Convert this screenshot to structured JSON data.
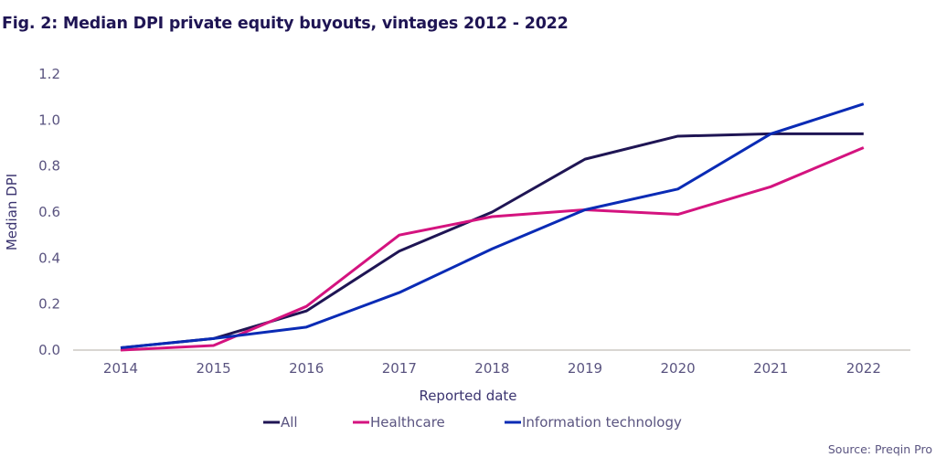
{
  "chart_data": {
    "type": "line",
    "title": "Fig. 2: Median DPI private equity buyouts, vintages 2012 - 2022",
    "xlabel": "Reported date",
    "ylabel": "Median DPI",
    "x": [
      "2014",
      "2015",
      "2016",
      "2017",
      "2018",
      "2019",
      "2020",
      "2021",
      "2022"
    ],
    "ylim": [
      0,
      1.2
    ],
    "yticks": [
      "0.0",
      "0.2",
      "0.4",
      "0.6",
      "0.8",
      "1.0",
      "1.2"
    ],
    "ytick_values": [
      0,
      0.2,
      0.4,
      0.6,
      0.8,
      1.0,
      1.2
    ],
    "grid": false,
    "legend_position": "bottom",
    "series": [
      {
        "name": "All",
        "color": "#1f1554",
        "values": [
          0.01,
          0.05,
          0.17,
          0.43,
          0.6,
          0.83,
          0.93,
          0.94,
          0.94
        ]
      },
      {
        "name": "Healthcare",
        "color": "#d4137f",
        "values": [
          0.0,
          0.02,
          0.19,
          0.5,
          0.58,
          0.61,
          0.59,
          0.71,
          0.88
        ]
      },
      {
        "name": "Information technology",
        "color": "#0a2bb5",
        "values": [
          0.01,
          0.05,
          0.1,
          0.25,
          0.44,
          0.61,
          0.7,
          0.94,
          1.07
        ]
      }
    ],
    "source": "Source: Preqin Pro"
  }
}
